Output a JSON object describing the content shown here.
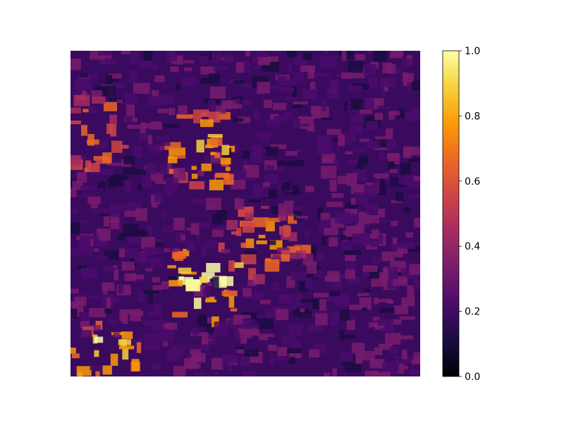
{
  "chart_data": {
    "type": "heatmap",
    "title": "",
    "xlabel": "",
    "ylabel": "",
    "colormap": "inferno",
    "colorbar": {
      "ticks": [
        0.0,
        0.2,
        0.4,
        0.6,
        0.8,
        1.0
      ],
      "tick_labels": [
        "0.0",
        "0.2",
        "0.4",
        "0.6",
        "0.8",
        "1.0"
      ],
      "range": [
        0.0,
        1.0
      ]
    },
    "axes_visible": false,
    "colors": {
      "inferno_stops": [
        "#000004",
        "#1b0c41",
        "#4a0c6b",
        "#781c6d",
        "#a52c60",
        "#cf4446",
        "#ed6925",
        "#fb9b06",
        "#f7d13d",
        "#fcffa4"
      ]
    }
  }
}
